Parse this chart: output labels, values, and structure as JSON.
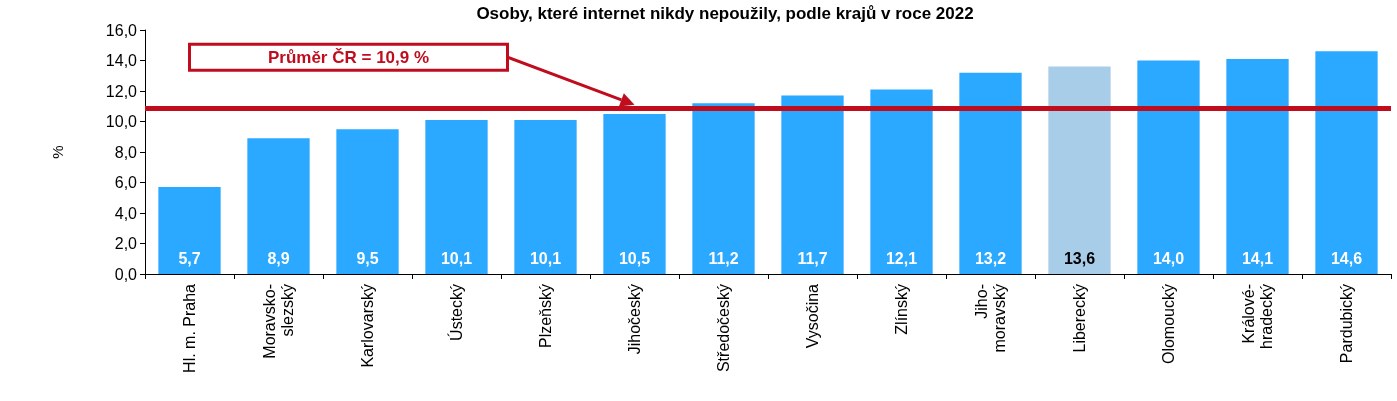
{
  "chart_data": {
    "type": "bar",
    "title": "Osoby, které internet nikdy nepoužily, podle krajů v roce 2022",
    "ylabel": "%",
    "categories": [
      "Hl. m. Praha",
      "Moravsko-\nslezský",
      "Karlovarský",
      "Ústecký",
      "Plzeňský",
      "Jihočeský",
      "Středočeský",
      "Vysočina",
      "Zlínský",
      "Jiho-\nmoravský",
      "Liberecký",
      "Olomoucký",
      "Králové-\nhradecký",
      "Pardubický"
    ],
    "values": [
      5.7,
      8.9,
      9.5,
      10.1,
      10.1,
      10.5,
      11.2,
      11.7,
      12.1,
      13.2,
      13.6,
      14.0,
      14.1,
      14.6
    ],
    "value_labels": [
      "5,7",
      "8,9",
      "9,5",
      "10,1",
      "10,1",
      "10,5",
      "11,2",
      "11,7",
      "12,1",
      "13,2",
      "13,6",
      "14,0",
      "14,1",
      "14,6"
    ],
    "colors": [
      "#2ba8ff",
      "#2ba8ff",
      "#2ba8ff",
      "#2ba8ff",
      "#2ba8ff",
      "#2ba8ff",
      "#2ba8ff",
      "#2ba8ff",
      "#2ba8ff",
      "#2ba8ff",
      "#a8cde8",
      "#2ba8ff",
      "#2ba8ff",
      "#2ba8ff"
    ],
    "ylim": [
      0,
      16
    ],
    "yticks": [
      {
        "value": 0,
        "label": "0,0"
      },
      {
        "value": 2,
        "label": "2,0"
      },
      {
        "value": 4,
        "label": "4,0"
      },
      {
        "value": 6,
        "label": "6,0"
      },
      {
        "value": 8,
        "label": "8,0"
      },
      {
        "value": 10,
        "label": "10,0"
      },
      {
        "value": 12,
        "label": "12,0"
      },
      {
        "value": 14,
        "label": "14,0"
      },
      {
        "value": 16,
        "label": "16,0"
      }
    ],
    "ref_lines": [
      {
        "axis": "y",
        "value": 10.9,
        "label": "Průměr ČR = 10,9 %",
        "color": "#c00d1e"
      }
    ],
    "grid": false
  }
}
